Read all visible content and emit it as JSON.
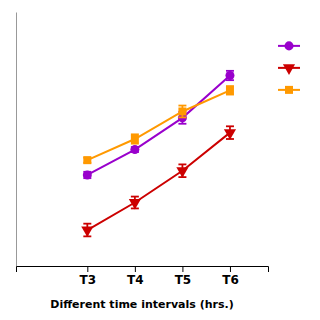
{
  "chart_data": {
    "type": "line",
    "xlabel": "Different time intervals (hrs.)",
    "x": [
      3,
      4,
      5,
      6
    ],
    "xlim": [
      1.5,
      6.8
    ],
    "xticks": [
      {
        "value": 3,
        "label": "T3"
      },
      {
        "value": 4,
        "label": "T4"
      },
      {
        "value": 5,
        "label": "T5"
      },
      {
        "value": 6,
        "label": "T6"
      }
    ],
    "ylim": [
      -0.5,
      11.5
    ],
    "tick_labels": "x",
    "legend": "right",
    "series": [
      {
        "color": "#9900cc",
        "marker": "circle",
        "values": [
          3.8,
          5.0,
          6.5,
          8.5
        ],
        "yerr": [
          0.15,
          0.12,
          0.28,
          0.22
        ]
      },
      {
        "color": "#cc0000",
        "marker": "triangle-down",
        "values": [
          1.2,
          2.5,
          4.0,
          5.8
        ],
        "yerr": [
          0.3,
          0.28,
          0.3,
          0.3
        ]
      },
      {
        "color": "#ff9900",
        "marker": "square",
        "values": [
          4.5,
          5.5,
          6.8,
          7.8
        ],
        "yerr": [
          0.12,
          0.22,
          0.28,
          0.2
        ]
      }
    ]
  }
}
